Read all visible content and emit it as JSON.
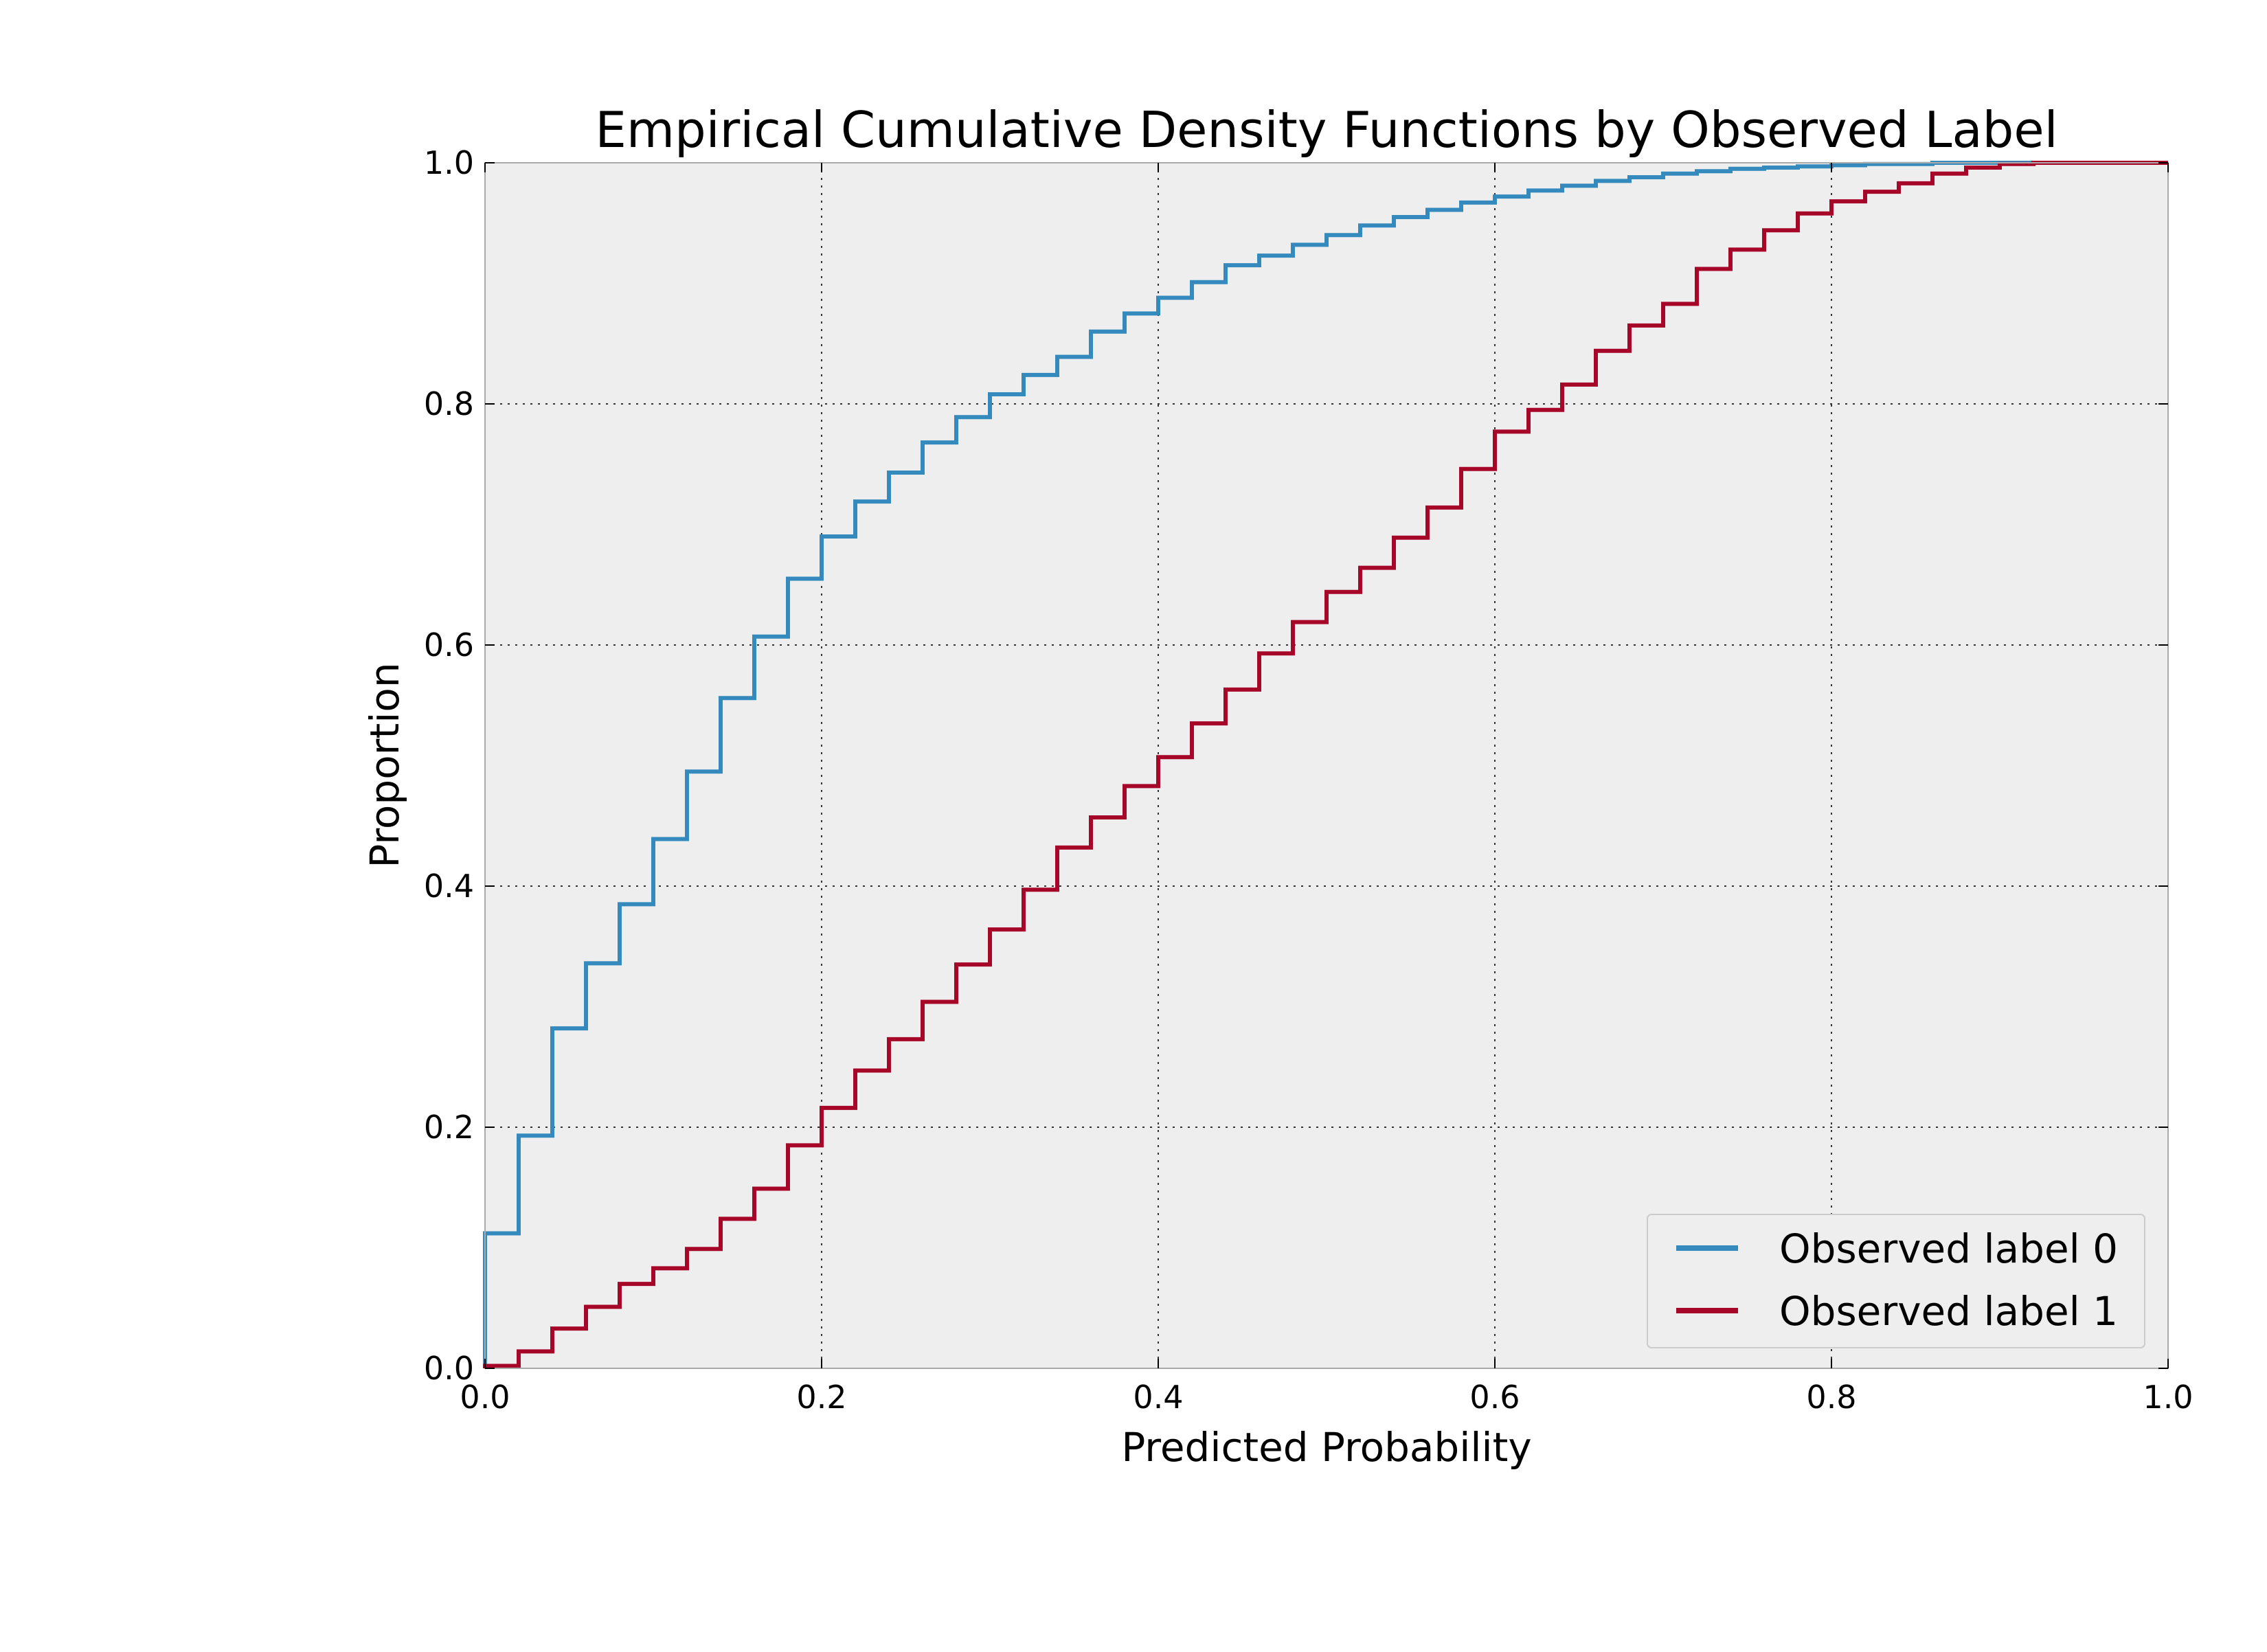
{
  "chart_data": {
    "type": "line",
    "step": true,
    "title": "Empirical Cumulative Density Functions by Observed Label",
    "xlabel": "Predicted Probability",
    "ylabel": "Proportion",
    "xlim": [
      0.0,
      1.0
    ],
    "ylim": [
      0.0,
      1.0
    ],
    "grid": true,
    "legend_position": "bottom-right",
    "x_ticks": [
      "0.0",
      "0.2",
      "0.4",
      "0.6",
      "0.8",
      "1.0"
    ],
    "y_ticks": [
      "0.0",
      "0.2",
      "0.4",
      "0.6",
      "0.8",
      "1.0"
    ],
    "colors": {
      "background": "#eeeeee",
      "grid": "#333333",
      "frame": "#aaaaaa"
    },
    "series": [
      {
        "name": "Observed label 0",
        "color": "#348abd",
        "x": [
          0.0,
          0.02,
          0.04,
          0.06,
          0.08,
          0.1,
          0.12,
          0.14,
          0.16,
          0.18,
          0.2,
          0.22,
          0.24,
          0.26,
          0.28,
          0.3,
          0.32,
          0.34,
          0.36,
          0.38,
          0.4,
          0.42,
          0.44,
          0.46,
          0.48,
          0.5,
          0.52,
          0.54,
          0.56,
          0.58,
          0.6,
          0.62,
          0.64,
          0.66,
          0.68,
          0.7,
          0.72,
          0.74,
          0.76,
          0.78,
          0.8,
          0.82,
          0.84,
          0.86,
          0.88,
          0.9,
          0.92,
          0.94,
          0.96,
          0.98,
          1.0
        ],
        "y": [
          0.112,
          0.193,
          0.282,
          0.336,
          0.385,
          0.439,
          0.495,
          0.556,
          0.607,
          0.655,
          0.69,
          0.719,
          0.743,
          0.768,
          0.789,
          0.808,
          0.824,
          0.839,
          0.86,
          0.875,
          0.888,
          0.901,
          0.915,
          0.923,
          0.932,
          0.94,
          0.948,
          0.955,
          0.961,
          0.967,
          0.972,
          0.977,
          0.981,
          0.985,
          0.988,
          0.991,
          0.993,
          0.995,
          0.996,
          0.997,
          0.998,
          0.999,
          0.999,
          1.0,
          1.0,
          1.0,
          1.0,
          1.0,
          1.0,
          1.0,
          1.0
        ]
      },
      {
        "name": "Observed label 1",
        "color": "#a60628",
        "x": [
          0.0,
          0.02,
          0.04,
          0.06,
          0.08,
          0.1,
          0.12,
          0.14,
          0.16,
          0.18,
          0.2,
          0.22,
          0.24,
          0.26,
          0.28,
          0.3,
          0.32,
          0.34,
          0.36,
          0.38,
          0.4,
          0.42,
          0.44,
          0.46,
          0.48,
          0.5,
          0.52,
          0.54,
          0.56,
          0.58,
          0.6,
          0.62,
          0.64,
          0.66,
          0.68,
          0.7,
          0.72,
          0.74,
          0.76,
          0.78,
          0.8,
          0.82,
          0.84,
          0.86,
          0.88,
          0.9,
          0.92,
          0.94,
          0.96,
          0.98,
          1.0
        ],
        "y": [
          0.002,
          0.014,
          0.033,
          0.051,
          0.07,
          0.083,
          0.099,
          0.124,
          0.149,
          0.185,
          0.216,
          0.247,
          0.273,
          0.304,
          0.335,
          0.364,
          0.397,
          0.432,
          0.457,
          0.483,
          0.507,
          0.535,
          0.563,
          0.593,
          0.619,
          0.644,
          0.664,
          0.689,
          0.714,
          0.746,
          0.777,
          0.795,
          0.816,
          0.844,
          0.865,
          0.883,
          0.912,
          0.928,
          0.944,
          0.958,
          0.968,
          0.976,
          0.983,
          0.991,
          0.996,
          0.999,
          1.0,
          1.0,
          1.0,
          1.0,
          1.0
        ]
      }
    ]
  }
}
